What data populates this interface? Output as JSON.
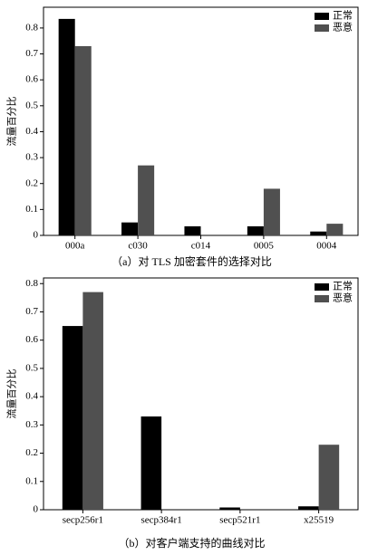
{
  "chart_data": [
    {
      "type": "bar",
      "y_label": "流量百分比",
      "caption": "（a）对 TLS 加密套件的选择对比",
      "categories": [
        "000a",
        "c030",
        "c014",
        "0005",
        "0004"
      ],
      "series": [
        {
          "name": "正常",
          "color": "#000000",
          "values": [
            0.835,
            0.05,
            0.035,
            0.035,
            0.015
          ]
        },
        {
          "name": "恶意",
          "color": "#505050",
          "values": [
            0.73,
            0.27,
            0,
            0.18,
            0.045
          ]
        }
      ],
      "ylim": [
        0,
        0.88
      ],
      "yticks": [
        0,
        0.1,
        0.2,
        0.3,
        0.4,
        0.5,
        0.6,
        0.7,
        0.8
      ],
      "legend": "upper right"
    },
    {
      "type": "bar",
      "y_label": "流量百分比",
      "caption": "（b）对客户端支持的曲线对比",
      "categories": [
        "secp256r1",
        "secp384r1",
        "secp521r1",
        "x25519"
      ],
      "series": [
        {
          "name": "正常",
          "color": "#000000",
          "values": [
            0.65,
            0.33,
            0.008,
            0.012
          ]
        },
        {
          "name": "恶意",
          "color": "#505050",
          "values": [
            0.77,
            0,
            0,
            0.23
          ]
        }
      ],
      "ylim": [
        0,
        0.82
      ],
      "yticks": [
        0,
        0.1,
        0.2,
        0.3,
        0.4,
        0.5,
        0.6,
        0.7,
        0.8
      ],
      "legend": "upper right"
    }
  ]
}
